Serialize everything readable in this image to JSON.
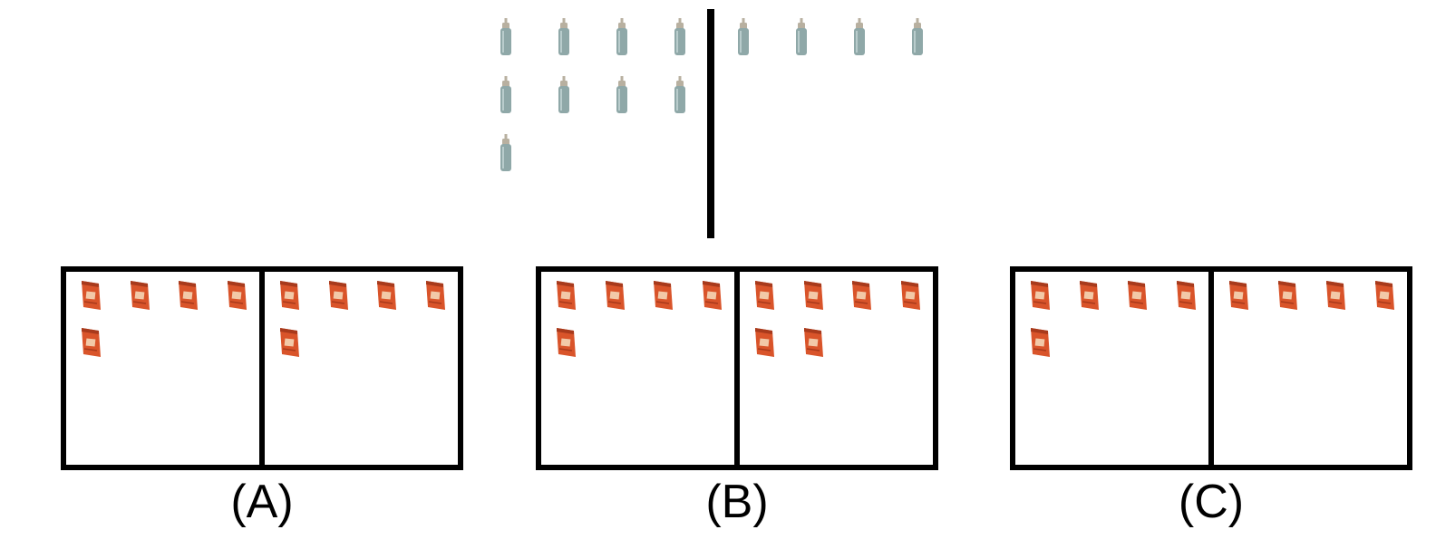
{
  "top": {
    "left_group": {
      "count": 9,
      "icon": "bottle-icon"
    },
    "right_group": {
      "count": 4,
      "icon": "bottle-icon"
    },
    "bottle_colors": {
      "body": "#8fa8a8",
      "cap": "#b8b0a0"
    }
  },
  "options": [
    {
      "label": "(A)",
      "left_count": 5,
      "right_count": 5,
      "icon": "snack-bag-icon"
    },
    {
      "label": "(B)",
      "left_count": 5,
      "right_count": 6,
      "icon": "snack-bag-icon"
    },
    {
      "label": "(C)",
      "left_count": 5,
      "right_count": 4,
      "icon": "snack-bag-icon"
    }
  ],
  "colors": {
    "bag": "#d9542a",
    "bag_dark": "#a83a1c",
    "frame": "#000000"
  }
}
